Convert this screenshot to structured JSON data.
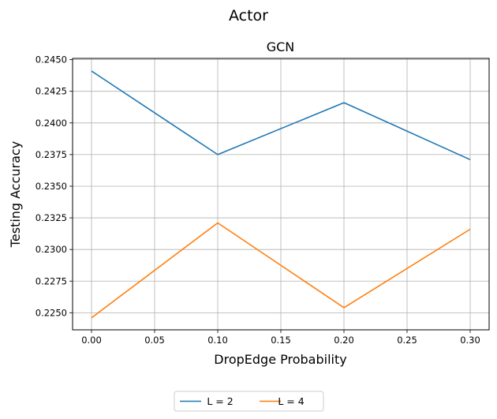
{
  "figure": {
    "suptitle": "Actor"
  },
  "chart_data": {
    "type": "line",
    "title": "GCN",
    "xlabel": "DropEdge Probability",
    "ylabel": "Testing Accuracy",
    "x": [
      0.0,
      0.1,
      0.2,
      0.3
    ],
    "xlim": [
      -0.015,
      0.315
    ],
    "ylim": [
      0.22365,
      0.2451
    ],
    "xticks": [
      0.0,
      0.05,
      0.1,
      0.15,
      0.2,
      0.25,
      0.3
    ],
    "xtick_labels": [
      "0.00",
      "0.05",
      "0.10",
      "0.15",
      "0.20",
      "0.25",
      "0.30"
    ],
    "yticks": [
      0.225,
      0.2275,
      0.23,
      0.2325,
      0.235,
      0.2375,
      0.24,
      0.2425,
      0.245
    ],
    "ytick_labels": [
      "0.2250",
      "0.2275",
      "0.2300",
      "0.2325",
      "0.2350",
      "0.2375",
      "0.2400",
      "0.2425",
      "0.2450"
    ],
    "grid": true,
    "legend_position": "bottom-center",
    "series": [
      {
        "name": "L = 2",
        "color": "#1f77b4",
        "values": [
          0.2441,
          0.2375,
          0.2416,
          0.2371
        ]
      },
      {
        "name": "L = 4",
        "color": "#ff7f0e",
        "values": [
          0.2246,
          0.2321,
          0.2254,
          0.2316
        ]
      }
    ]
  }
}
